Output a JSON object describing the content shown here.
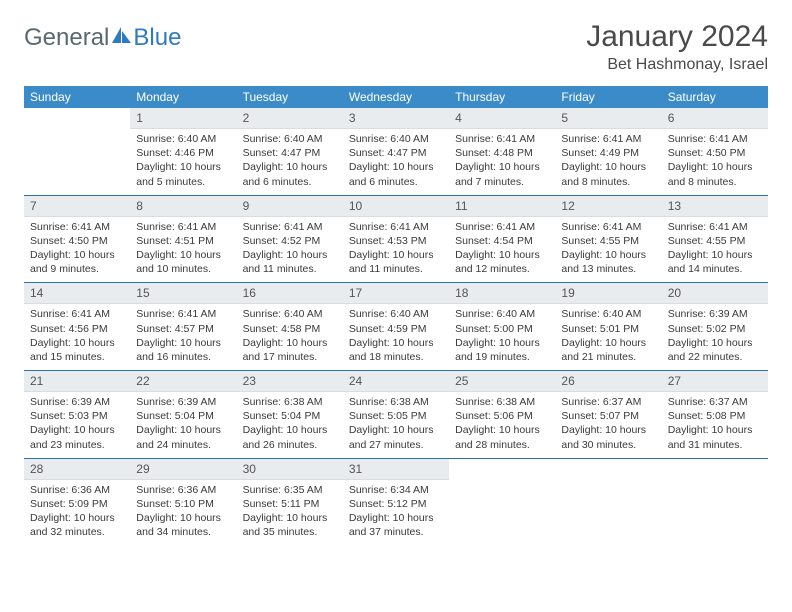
{
  "logo": {
    "part1": "General",
    "part2": "Blue"
  },
  "title": "January 2024",
  "location": "Bet Hashmonay, Israel",
  "colors": {
    "header_bg": "#3b8bc8",
    "header_text": "#ffffff",
    "daynum_bg": "#e9ecef",
    "week_border": "#2f6fa8",
    "logo_gray": "#5a6870",
    "logo_blue": "#2f7bbf"
  },
  "daysOfWeek": [
    "Sunday",
    "Monday",
    "Tuesday",
    "Wednesday",
    "Thursday",
    "Friday",
    "Saturday"
  ],
  "weeks": [
    [
      {
        "n": "",
        "sunrise": "",
        "sunset": "",
        "daylight1": "",
        "daylight2": ""
      },
      {
        "n": "1",
        "sunrise": "Sunrise: 6:40 AM",
        "sunset": "Sunset: 4:46 PM",
        "daylight1": "Daylight: 10 hours",
        "daylight2": "and 5 minutes."
      },
      {
        "n": "2",
        "sunrise": "Sunrise: 6:40 AM",
        "sunset": "Sunset: 4:47 PM",
        "daylight1": "Daylight: 10 hours",
        "daylight2": "and 6 minutes."
      },
      {
        "n": "3",
        "sunrise": "Sunrise: 6:40 AM",
        "sunset": "Sunset: 4:47 PM",
        "daylight1": "Daylight: 10 hours",
        "daylight2": "and 6 minutes."
      },
      {
        "n": "4",
        "sunrise": "Sunrise: 6:41 AM",
        "sunset": "Sunset: 4:48 PM",
        "daylight1": "Daylight: 10 hours",
        "daylight2": "and 7 minutes."
      },
      {
        "n": "5",
        "sunrise": "Sunrise: 6:41 AM",
        "sunset": "Sunset: 4:49 PM",
        "daylight1": "Daylight: 10 hours",
        "daylight2": "and 8 minutes."
      },
      {
        "n": "6",
        "sunrise": "Sunrise: 6:41 AM",
        "sunset": "Sunset: 4:50 PM",
        "daylight1": "Daylight: 10 hours",
        "daylight2": "and 8 minutes."
      }
    ],
    [
      {
        "n": "7",
        "sunrise": "Sunrise: 6:41 AM",
        "sunset": "Sunset: 4:50 PM",
        "daylight1": "Daylight: 10 hours",
        "daylight2": "and 9 minutes."
      },
      {
        "n": "8",
        "sunrise": "Sunrise: 6:41 AM",
        "sunset": "Sunset: 4:51 PM",
        "daylight1": "Daylight: 10 hours",
        "daylight2": "and 10 minutes."
      },
      {
        "n": "9",
        "sunrise": "Sunrise: 6:41 AM",
        "sunset": "Sunset: 4:52 PM",
        "daylight1": "Daylight: 10 hours",
        "daylight2": "and 11 minutes."
      },
      {
        "n": "10",
        "sunrise": "Sunrise: 6:41 AM",
        "sunset": "Sunset: 4:53 PM",
        "daylight1": "Daylight: 10 hours",
        "daylight2": "and 11 minutes."
      },
      {
        "n": "11",
        "sunrise": "Sunrise: 6:41 AM",
        "sunset": "Sunset: 4:54 PM",
        "daylight1": "Daylight: 10 hours",
        "daylight2": "and 12 minutes."
      },
      {
        "n": "12",
        "sunrise": "Sunrise: 6:41 AM",
        "sunset": "Sunset: 4:55 PM",
        "daylight1": "Daylight: 10 hours",
        "daylight2": "and 13 minutes."
      },
      {
        "n": "13",
        "sunrise": "Sunrise: 6:41 AM",
        "sunset": "Sunset: 4:55 PM",
        "daylight1": "Daylight: 10 hours",
        "daylight2": "and 14 minutes."
      }
    ],
    [
      {
        "n": "14",
        "sunrise": "Sunrise: 6:41 AM",
        "sunset": "Sunset: 4:56 PM",
        "daylight1": "Daylight: 10 hours",
        "daylight2": "and 15 minutes."
      },
      {
        "n": "15",
        "sunrise": "Sunrise: 6:41 AM",
        "sunset": "Sunset: 4:57 PM",
        "daylight1": "Daylight: 10 hours",
        "daylight2": "and 16 minutes."
      },
      {
        "n": "16",
        "sunrise": "Sunrise: 6:40 AM",
        "sunset": "Sunset: 4:58 PM",
        "daylight1": "Daylight: 10 hours",
        "daylight2": "and 17 minutes."
      },
      {
        "n": "17",
        "sunrise": "Sunrise: 6:40 AM",
        "sunset": "Sunset: 4:59 PM",
        "daylight1": "Daylight: 10 hours",
        "daylight2": "and 18 minutes."
      },
      {
        "n": "18",
        "sunrise": "Sunrise: 6:40 AM",
        "sunset": "Sunset: 5:00 PM",
        "daylight1": "Daylight: 10 hours",
        "daylight2": "and 19 minutes."
      },
      {
        "n": "19",
        "sunrise": "Sunrise: 6:40 AM",
        "sunset": "Sunset: 5:01 PM",
        "daylight1": "Daylight: 10 hours",
        "daylight2": "and 21 minutes."
      },
      {
        "n": "20",
        "sunrise": "Sunrise: 6:39 AM",
        "sunset": "Sunset: 5:02 PM",
        "daylight1": "Daylight: 10 hours",
        "daylight2": "and 22 minutes."
      }
    ],
    [
      {
        "n": "21",
        "sunrise": "Sunrise: 6:39 AM",
        "sunset": "Sunset: 5:03 PM",
        "daylight1": "Daylight: 10 hours",
        "daylight2": "and 23 minutes."
      },
      {
        "n": "22",
        "sunrise": "Sunrise: 6:39 AM",
        "sunset": "Sunset: 5:04 PM",
        "daylight1": "Daylight: 10 hours",
        "daylight2": "and 24 minutes."
      },
      {
        "n": "23",
        "sunrise": "Sunrise: 6:38 AM",
        "sunset": "Sunset: 5:04 PM",
        "daylight1": "Daylight: 10 hours",
        "daylight2": "and 26 minutes."
      },
      {
        "n": "24",
        "sunrise": "Sunrise: 6:38 AM",
        "sunset": "Sunset: 5:05 PM",
        "daylight1": "Daylight: 10 hours",
        "daylight2": "and 27 minutes."
      },
      {
        "n": "25",
        "sunrise": "Sunrise: 6:38 AM",
        "sunset": "Sunset: 5:06 PM",
        "daylight1": "Daylight: 10 hours",
        "daylight2": "and 28 minutes."
      },
      {
        "n": "26",
        "sunrise": "Sunrise: 6:37 AM",
        "sunset": "Sunset: 5:07 PM",
        "daylight1": "Daylight: 10 hours",
        "daylight2": "and 30 minutes."
      },
      {
        "n": "27",
        "sunrise": "Sunrise: 6:37 AM",
        "sunset": "Sunset: 5:08 PM",
        "daylight1": "Daylight: 10 hours",
        "daylight2": "and 31 minutes."
      }
    ],
    [
      {
        "n": "28",
        "sunrise": "Sunrise: 6:36 AM",
        "sunset": "Sunset: 5:09 PM",
        "daylight1": "Daylight: 10 hours",
        "daylight2": "and 32 minutes."
      },
      {
        "n": "29",
        "sunrise": "Sunrise: 6:36 AM",
        "sunset": "Sunset: 5:10 PM",
        "daylight1": "Daylight: 10 hours",
        "daylight2": "and 34 minutes."
      },
      {
        "n": "30",
        "sunrise": "Sunrise: 6:35 AM",
        "sunset": "Sunset: 5:11 PM",
        "daylight1": "Daylight: 10 hours",
        "daylight2": "and 35 minutes."
      },
      {
        "n": "31",
        "sunrise": "Sunrise: 6:34 AM",
        "sunset": "Sunset: 5:12 PM",
        "daylight1": "Daylight: 10 hours",
        "daylight2": "and 37 minutes."
      },
      {
        "n": "",
        "sunrise": "",
        "sunset": "",
        "daylight1": "",
        "daylight2": ""
      },
      {
        "n": "",
        "sunrise": "",
        "sunset": "",
        "daylight1": "",
        "daylight2": ""
      },
      {
        "n": "",
        "sunrise": "",
        "sunset": "",
        "daylight1": "",
        "daylight2": ""
      }
    ]
  ]
}
